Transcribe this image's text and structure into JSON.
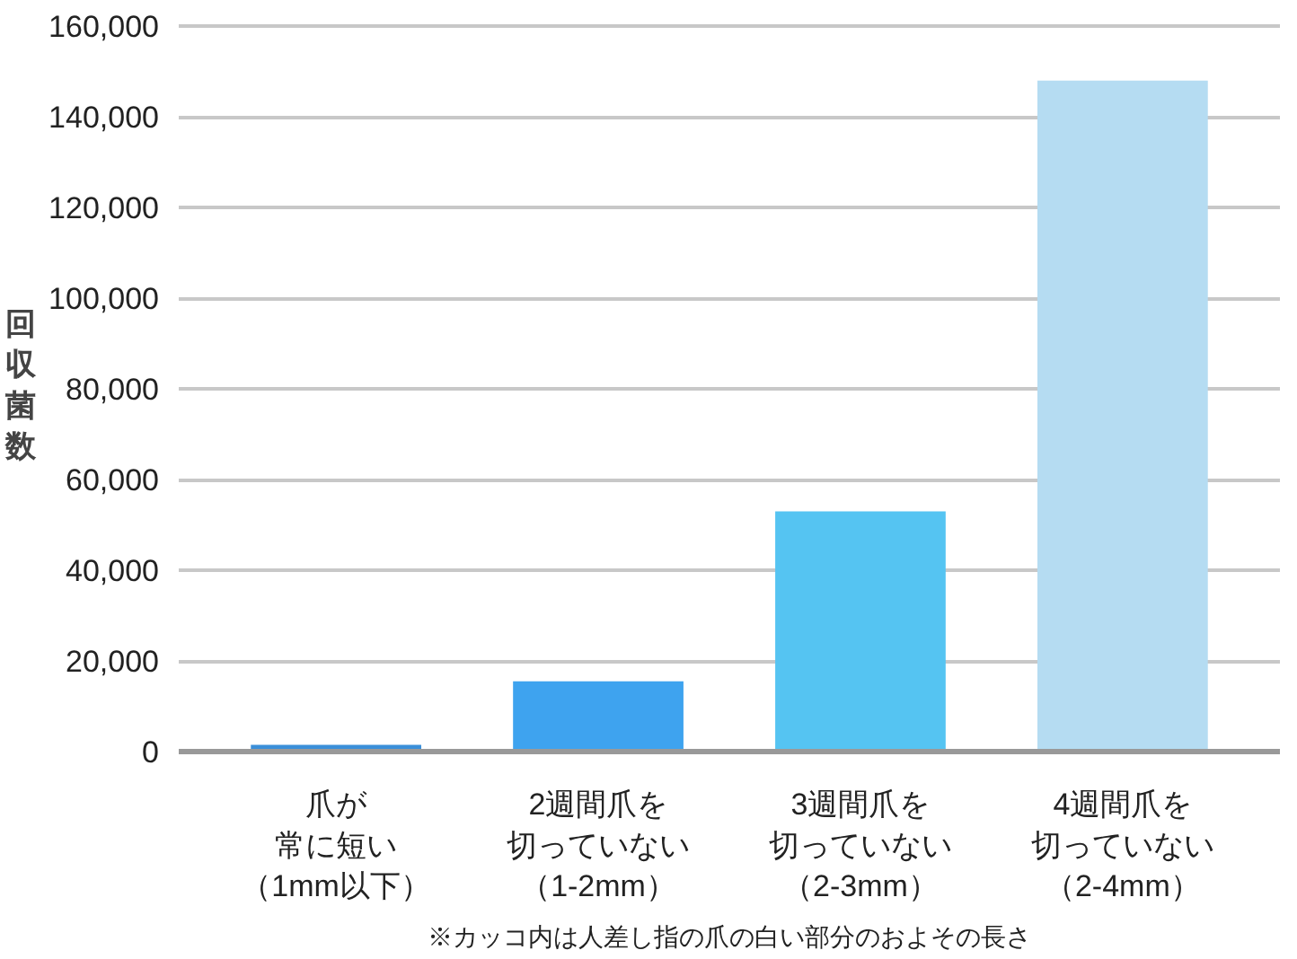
{
  "chart_data": {
    "type": "bar",
    "categories": [
      "爪が常に短い（1mm以下）",
      "2週間爪を切っていない（1-2mm）",
      "3週間爪を切っていない（2-3mm）",
      "4週間爪を切っていない（2-4mm）"
    ],
    "values": [
      1500,
      15500,
      53000,
      148000
    ],
    "colors": [
      "#3a8fd9",
      "#3ea3ef",
      "#55c4f2",
      "#b5dcf2"
    ],
    "ylabel": "回収菌数",
    "ylim": [
      0,
      160000
    ],
    "yticks": [
      {
        "value": 0,
        "label": "0"
      },
      {
        "value": 20000,
        "label": "20,000"
      },
      {
        "value": 40000,
        "label": "40,000"
      },
      {
        "value": 60000,
        "label": "60,000"
      },
      {
        "value": 80000,
        "label": "80,000"
      },
      {
        "value": 100000,
        "label": "100,000"
      },
      {
        "value": 120000,
        "label": "120,000"
      },
      {
        "value": 140000,
        "label": "140,000"
      },
      {
        "value": 160000,
        "label": "160,000"
      }
    ],
    "grid": "y",
    "annotations": [
      "※カッコ内は人差し指の爪の白い部分のおよその長さ"
    ]
  }
}
